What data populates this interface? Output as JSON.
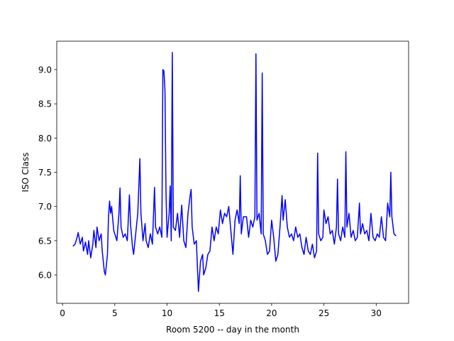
{
  "chart_data": {
    "type": "line",
    "xlabel": "Room 5200 -- day in the month",
    "ylabel": "ISO Class",
    "color": "#0000ff",
    "xlim": [
      -0.55,
      33.1
    ],
    "ylim": [
      5.585,
      9.415
    ],
    "xticks": [
      0,
      5,
      10,
      15,
      20,
      25,
      30
    ],
    "yticks": [
      {
        "value": 6,
        "label": "6.0"
      },
      6.5,
      {
        "value": 7,
        "label": "7.0"
      },
      7.5,
      {
        "value": 8,
        "label": "8.0"
      },
      8.5,
      {
        "value": 9,
        "label": "9.0"
      }
    ],
    "grid": false,
    "x": [
      1.0,
      1.2,
      1.4,
      1.5,
      1.7,
      1.9,
      2.0,
      2.2,
      2.4,
      2.5,
      2.7,
      2.9,
      3.0,
      3.2,
      3.3,
      3.5,
      3.7,
      3.8,
      4.0,
      4.1,
      4.3,
      4.4,
      4.5,
      4.6,
      4.7,
      4.9,
      5.0,
      5.2,
      5.4,
      5.5,
      5.6,
      5.8,
      6.0,
      6.2,
      6.4,
      6.5,
      6.7,
      6.8,
      7.0,
      7.2,
      7.4,
      7.5,
      7.7,
      7.9,
      8.0,
      8.2,
      8.4,
      8.6,
      8.8,
      8.9,
      9.1,
      9.3,
      9.5,
      9.6,
      9.7,
      9.8,
      9.9,
      10.0,
      10.2,
      10.3,
      10.4,
      10.5,
      10.6,
      10.8,
      11.0,
      11.2,
      11.4,
      11.6,
      11.8,
      12.0,
      12.2,
      12.3,
      12.4,
      12.6,
      12.8,
      13.0,
      13.2,
      13.4,
      13.5,
      13.7,
      13.9,
      14.1,
      14.3,
      14.5,
      14.7,
      14.9,
      15.1,
      15.3,
      15.5,
      15.7,
      15.9,
      16.1,
      16.3,
      16.5,
      16.7,
      16.9,
      17.0,
      17.1,
      17.3,
      17.6,
      17.8,
      18.0,
      18.2,
      18.4,
      18.5,
      18.6,
      18.8,
      19.0,
      19.1,
      19.2,
      19.4,
      19.6,
      19.8,
      20.0,
      20.2,
      20.4,
      20.6,
      20.8,
      21.0,
      21.1,
      21.3,
      21.5,
      21.7,
      21.9,
      22.1,
      22.3,
      22.5,
      22.7,
      22.9,
      23.1,
      23.3,
      23.5,
      23.7,
      23.9,
      24.1,
      24.3,
      24.4,
      24.5,
      24.7,
      24.9,
      25.0,
      25.2,
      25.4,
      25.6,
      25.8,
      26.0,
      26.2,
      26.3,
      26.4,
      26.6,
      26.8,
      27.0,
      27.1,
      27.2,
      27.4,
      27.6,
      27.8,
      28.0,
      28.2,
      28.4,
      28.5,
      28.7,
      28.9,
      29.1,
      29.3,
      29.5,
      29.7,
      29.9,
      30.1,
      30.3,
      30.5,
      30.7,
      30.9,
      31.1,
      31.3,
      31.4,
      31.5,
      31.7,
      31.9
    ],
    "values": [
      6.42,
      6.45,
      6.55,
      6.62,
      6.45,
      6.55,
      6.35,
      6.48,
      6.3,
      6.5,
      6.25,
      6.45,
      6.65,
      6.4,
      6.7,
      6.5,
      6.6,
      6.35,
      6.05,
      6.0,
      6.3,
      6.85,
      7.08,
      6.9,
      7.0,
      6.65,
      6.6,
      6.5,
      6.9,
      7.27,
      6.7,
      6.55,
      6.6,
      6.5,
      7.17,
      6.75,
      6.4,
      6.3,
      6.6,
      6.9,
      7.7,
      6.9,
      6.5,
      6.75,
      6.5,
      6.4,
      6.6,
      6.45,
      7.28,
      6.7,
      6.6,
      6.7,
      6.55,
      9.0,
      8.98,
      8.7,
      7.2,
      6.55,
      6.9,
      7.3,
      6.5,
      9.25,
      6.7,
      6.65,
      6.9,
      6.55,
      7.02,
      6.5,
      6.4,
      6.9,
      7.15,
      7.25,
      6.7,
      6.45,
      6.5,
      5.76,
      6.2,
      6.3,
      6.0,
      6.1,
      6.3,
      6.35,
      6.7,
      6.5,
      6.7,
      6.6,
      6.95,
      6.75,
      6.9,
      6.85,
      7.0,
      6.65,
      6.3,
      6.8,
      6.95,
      6.75,
      7.45,
      6.6,
      6.85,
      6.85,
      6.55,
      6.8,
      6.7,
      6.85,
      9.23,
      6.8,
      6.9,
      6.6,
      8.95,
      6.6,
      6.5,
      6.3,
      6.35,
      6.8,
      6.55,
      6.2,
      6.3,
      6.7,
      7.16,
      6.8,
      7.1,
      6.7,
      6.55,
      6.6,
      6.5,
      6.7,
      6.55,
      6.6,
      6.4,
      6.3,
      6.55,
      6.35,
      6.3,
      6.45,
      6.25,
      6.35,
      7.78,
      6.6,
      6.5,
      6.55,
      6.95,
      6.75,
      6.85,
      6.6,
      6.65,
      6.45,
      6.7,
      7.4,
      6.6,
      6.5,
      6.7,
      6.55,
      7.8,
      6.7,
      6.9,
      6.55,
      6.65,
      6.5,
      6.55,
      7.05,
      6.6,
      6.75,
      6.6,
      6.65,
      6.5,
      6.9,
      6.55,
      6.5,
      6.6,
      6.55,
      6.85,
      6.55,
      6.5,
      7.05,
      6.85,
      7.5,
      6.85,
      6.6,
      6.57
    ]
  }
}
